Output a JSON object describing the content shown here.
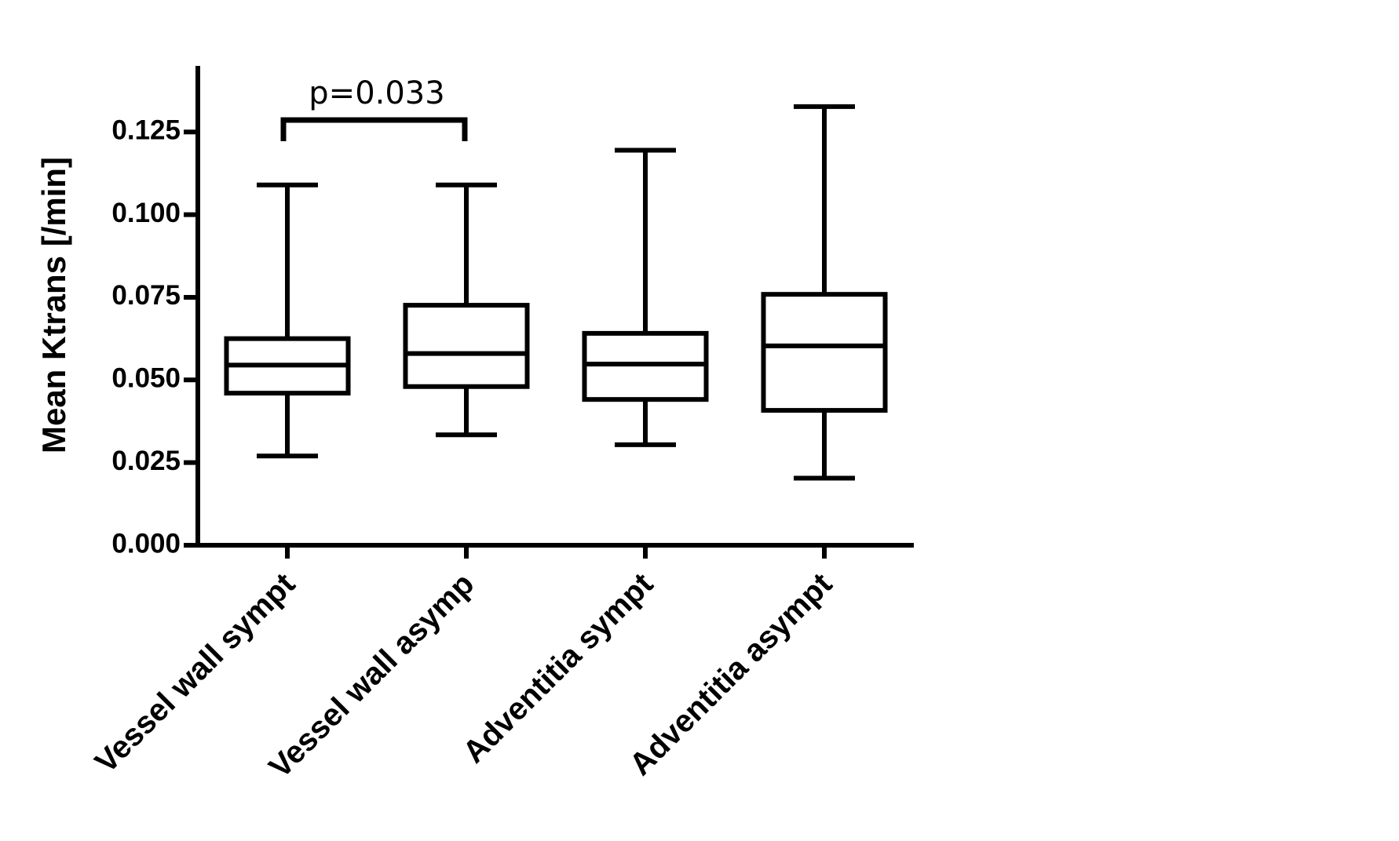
{
  "chart_data": {
    "type": "box",
    "y_label": "Mean Ktrans [/min]",
    "categories": [
      "Vessel wall sympt",
      "Vessel wall asymp",
      "Adventitia sympt",
      "Adventitia asympt"
    ],
    "min": [
      0.027,
      0.0334,
      0.0304,
      0.0203
    ],
    "q1": [
      0.046,
      0.048,
      0.0441,
      0.0408
    ],
    "median": [
      0.0545,
      0.058,
      0.0548,
      0.0603
    ],
    "q3": [
      0.0625,
      0.0726,
      0.0641,
      0.0759
    ],
    "max": [
      0.109,
      0.109,
      0.1195,
      0.1327
    ],
    "color": "#000000",
    "ylim": [
      0,
      0.145
    ],
    "yticks": [
      {
        "value": 0,
        "label": "0.000"
      },
      0.025,
      {
        "value": 0.05,
        "label": "0.050"
      },
      0.075,
      {
        "value": 0.1,
        "label": "0.100"
      },
      0.125
    ],
    "annotation": "p=0.033"
  }
}
